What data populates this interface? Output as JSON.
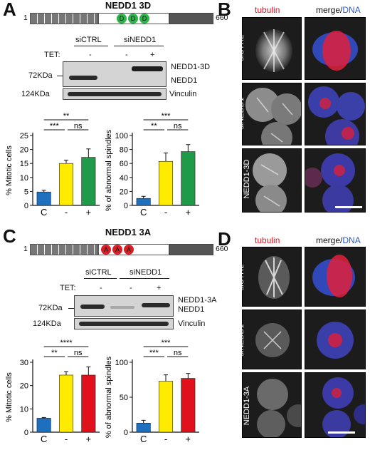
{
  "panels": {
    "A": {
      "letter": "A",
      "title": "NEDD1 3D",
      "domain_start": "1",
      "domain_end": "660",
      "domain_marks": [
        "D",
        "D",
        "D"
      ],
      "mark_color": "#2db44a",
      "header": {
        "ctrl": "siCTRL",
        "kd": "siNEDD1"
      },
      "tet_label": "TET:",
      "tet": [
        "-",
        "-",
        "+"
      ],
      "mw1": "72KDa",
      "mw2": "124KDa",
      "band_label_top": "NEDD1-3D",
      "band_label_bottom": "NEDD1",
      "band_label_vinc": "Vinculin"
    },
    "B": {
      "letter": "B",
      "col_tubulin": "tubulin",
      "col_merge": "merge/",
      "col_dna": "DNA",
      "rows": [
        "siCTRL",
        "siNEDD1",
        "siNEDD1 +",
        "NEDD1-3D"
      ]
    },
    "C": {
      "letter": "C",
      "title": "NEDD1 3A",
      "domain_start": "1",
      "domain_end": "660",
      "domain_marks": [
        "A",
        "A",
        "A"
      ],
      "mark_color": "#d81f26",
      "header": {
        "ctrl": "siCTRL",
        "kd": "siNEDD1"
      },
      "tet_label": "TET:",
      "tet": [
        "-",
        "-",
        "+"
      ],
      "mw1": "72KDa",
      "mw2": "124KDa",
      "band_label_top": "NEDD1-3A",
      "band_label_bottom": "NEDD1",
      "band_label_vinc": "Vinculin"
    },
    "D": {
      "letter": "D",
      "col_tubulin": "tubulin",
      "col_merge": "merge/",
      "col_dna": "DNA",
      "rows": [
        "siCTRL",
        "siNEDD1",
        "siNEDD1+",
        "NEDD1-3A"
      ]
    }
  },
  "chart_data": [
    {
      "type": "bar",
      "panel": "A",
      "ylabel": "% Mitotic cells",
      "categories": [
        "C",
        "-",
        "+"
      ],
      "values": [
        4.8,
        15,
        17.2
      ],
      "errors": [
        0.6,
        1.2,
        3.0
      ],
      "colors": [
        "#1f6fbf",
        "#ffeb00",
        "#1e9a48"
      ],
      "ylim": [
        0,
        25
      ],
      "yticks": [
        0,
        5,
        10,
        15,
        20,
        25
      ],
      "significance": [
        {
          "from": 0,
          "to": 2,
          "label": "**"
        },
        {
          "from": 0,
          "to": 1,
          "label": "***"
        },
        {
          "from": 1,
          "to": 2,
          "label": "ns"
        }
      ]
    },
    {
      "type": "bar",
      "panel": "A",
      "ylabel": "% of abnormal spindles",
      "categories": [
        "C",
        "-",
        "+"
      ],
      "values": [
        10,
        63,
        77
      ],
      "errors": [
        3,
        12,
        10
      ],
      "colors": [
        "#1f6fbf",
        "#ffeb00",
        "#1e9a48"
      ],
      "ylim": [
        0,
        100
      ],
      "yticks": [
        0,
        20,
        40,
        60,
        80,
        100
      ],
      "significance": [
        {
          "from": 0,
          "to": 2,
          "label": "***"
        },
        {
          "from": 0,
          "to": 1,
          "label": "**"
        },
        {
          "from": 1,
          "to": 2,
          "label": "ns"
        }
      ]
    },
    {
      "type": "bar",
      "panel": "C",
      "ylabel": "% Mitotic cells",
      "categories": [
        "C",
        "-",
        "+"
      ],
      "values": [
        6,
        24.5,
        24.5
      ],
      "errors": [
        0.3,
        1.5,
        3.5
      ],
      "colors": [
        "#1f6fbf",
        "#ffeb00",
        "#e0101c"
      ],
      "ylim": [
        0,
        30
      ],
      "yticks": [
        0,
        10,
        20,
        30
      ],
      "significance": [
        {
          "from": 0,
          "to": 2,
          "label": "****"
        },
        {
          "from": 0,
          "to": 1,
          "label": "**"
        },
        {
          "from": 1,
          "to": 2,
          "label": "ns"
        }
      ]
    },
    {
      "type": "bar",
      "panel": "C",
      "ylabel": "% of abnormal spindles",
      "categories": [
        "C",
        "-",
        "+"
      ],
      "values": [
        13,
        73,
        77
      ],
      "errors": [
        4,
        9,
        7
      ],
      "colors": [
        "#1f6fbf",
        "#ffeb00",
        "#e0101c"
      ],
      "ylim": [
        0,
        100
      ],
      "yticks": [
        0,
        50,
        100
      ],
      "significance": [
        {
          "from": 0,
          "to": 2,
          "label": "***"
        },
        {
          "from": 0,
          "to": 1,
          "label": "***"
        },
        {
          "from": 1,
          "to": 2,
          "label": "ns"
        }
      ]
    }
  ]
}
